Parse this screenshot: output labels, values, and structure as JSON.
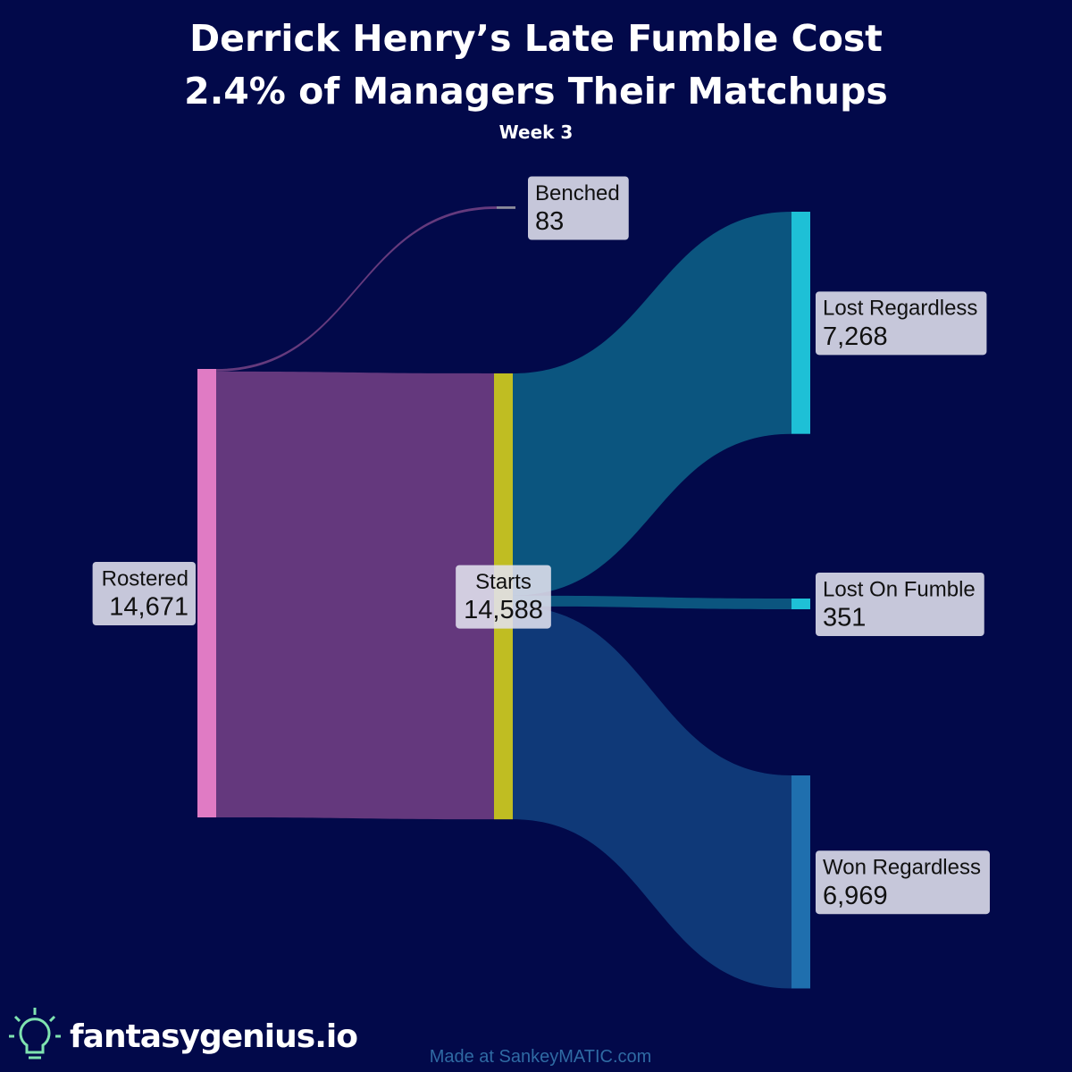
{
  "chart_data": {
    "type": "sankey",
    "title": "Derrick Henry’s Late Fumble Cost 2.4% of Managers Their Matchups",
    "subtitle": "Week 3",
    "nodes": [
      {
        "name": "Rostered",
        "value": 14671,
        "value_label": "14,671",
        "color": "#e07bc4"
      },
      {
        "name": "Benched",
        "value": 83,
        "value_label": "83",
        "color": "#8a8a9a"
      },
      {
        "name": "Starts",
        "value": 14588,
        "value_label": "14,588",
        "color": "#c0bd22"
      },
      {
        "name": "Lost Regardless",
        "value": 7268,
        "value_label": "7,268",
        "color": "#1ec0d6"
      },
      {
        "name": "Lost On Fumble",
        "value": 351,
        "value_label": "351",
        "color": "#1ec0d6"
      },
      {
        "name": "Won Regardless",
        "value": 6969,
        "value_label": "6,969",
        "color": "#1f6fae"
      }
    ],
    "links": [
      {
        "source": 0,
        "target": 1,
        "color": "#6a3d80"
      },
      {
        "source": 0,
        "target": 2,
        "color": "#693b80"
      },
      {
        "source": 2,
        "target": 3,
        "color": "#0c5a82"
      },
      {
        "source": 2,
        "target": 4,
        "color": "#0c5a82"
      },
      {
        "source": 2,
        "target": 5,
        "color": "#103c7a"
      }
    ],
    "brand": "fantasygenius.io",
    "credit": "Made at SankeyMATIC.com"
  }
}
